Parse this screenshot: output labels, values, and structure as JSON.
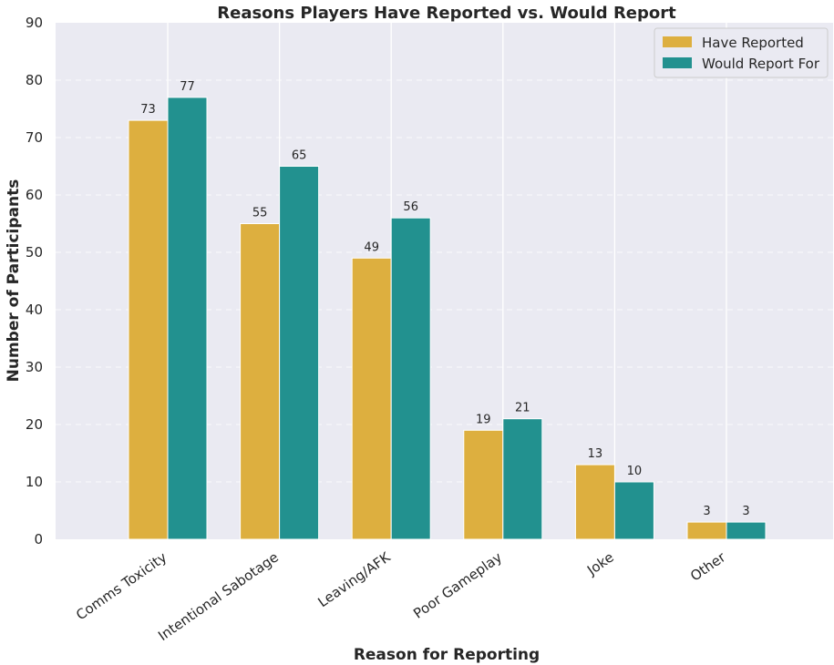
{
  "chart_data": {
    "type": "bar",
    "title": "Reasons Players Have Reported vs. Would Report",
    "xlabel": "Reason for Reporting",
    "ylabel": "Number of Participants",
    "categories": [
      "Comms Toxicity",
      "Intentional Sabotage",
      "Leaving/AFK",
      "Poor Gameplay",
      "Joke",
      "Other"
    ],
    "series": [
      {
        "name": "Have Reported",
        "values": [
          73,
          55,
          49,
          19,
          13,
          3
        ],
        "color": "#DDAF3F"
      },
      {
        "name": "Would Report For",
        "values": [
          77,
          65,
          56,
          21,
          10,
          3
        ],
        "color": "#22918F"
      }
    ],
    "ylim": [
      0,
      90
    ],
    "yticks": [
      0,
      10,
      20,
      30,
      40,
      50,
      60,
      70,
      80,
      90
    ],
    "grid": true,
    "legend_position": "top-right",
    "colors": {
      "background": "#EAEAF2",
      "grid": "#FFFFFF",
      "text": "#262626"
    }
  }
}
